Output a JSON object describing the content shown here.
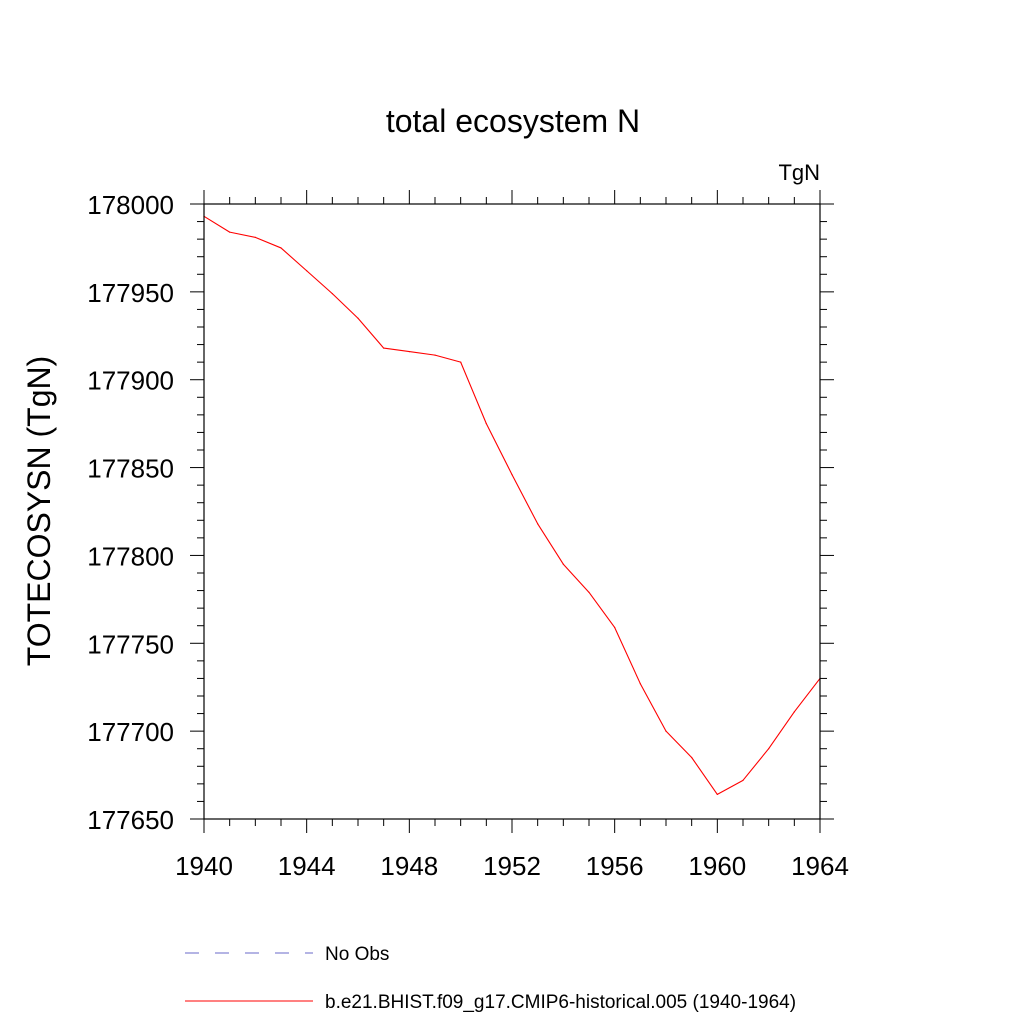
{
  "chart_data": {
    "type": "line",
    "title": "total ecosystem N",
    "units_label": "TgN",
    "ylabel": "TOTECOSYSN  (TgN)",
    "xlabel": "",
    "xlim": [
      1940,
      1964
    ],
    "ylim": [
      177650,
      178000
    ],
    "x_ticks": [
      1940,
      1944,
      1948,
      1952,
      1956,
      1960,
      1964
    ],
    "y_ticks": [
      177650,
      177700,
      177750,
      177800,
      177850,
      177900,
      177950,
      178000
    ],
    "grid": false,
    "legend_position": "bottom",
    "series": [
      {
        "name": "No Obs",
        "color": "#6a6ac8",
        "style": "dashed",
        "x": [],
        "values": []
      },
      {
        "name": "b.e21.BHIST.f09_g17.CMIP6-historical.005 (1940-1964)",
        "color": "#ff0000",
        "style": "solid",
        "x": [
          1940,
          1941,
          1942,
          1943,
          1944,
          1945,
          1946,
          1947,
          1948,
          1949,
          1950,
          1951,
          1952,
          1953,
          1954,
          1955,
          1956,
          1957,
          1958,
          1959,
          1960,
          1961,
          1962,
          1963,
          1964
        ],
        "values": [
          177993,
          177984,
          177981,
          177975,
          177962,
          177949,
          177935,
          177918,
          177916,
          177914,
          177910,
          177875,
          177846,
          177818,
          177795,
          177779,
          177759,
          177727,
          177700,
          177685,
          177664,
          177672,
          177690,
          177711,
          177730
        ]
      }
    ]
  }
}
